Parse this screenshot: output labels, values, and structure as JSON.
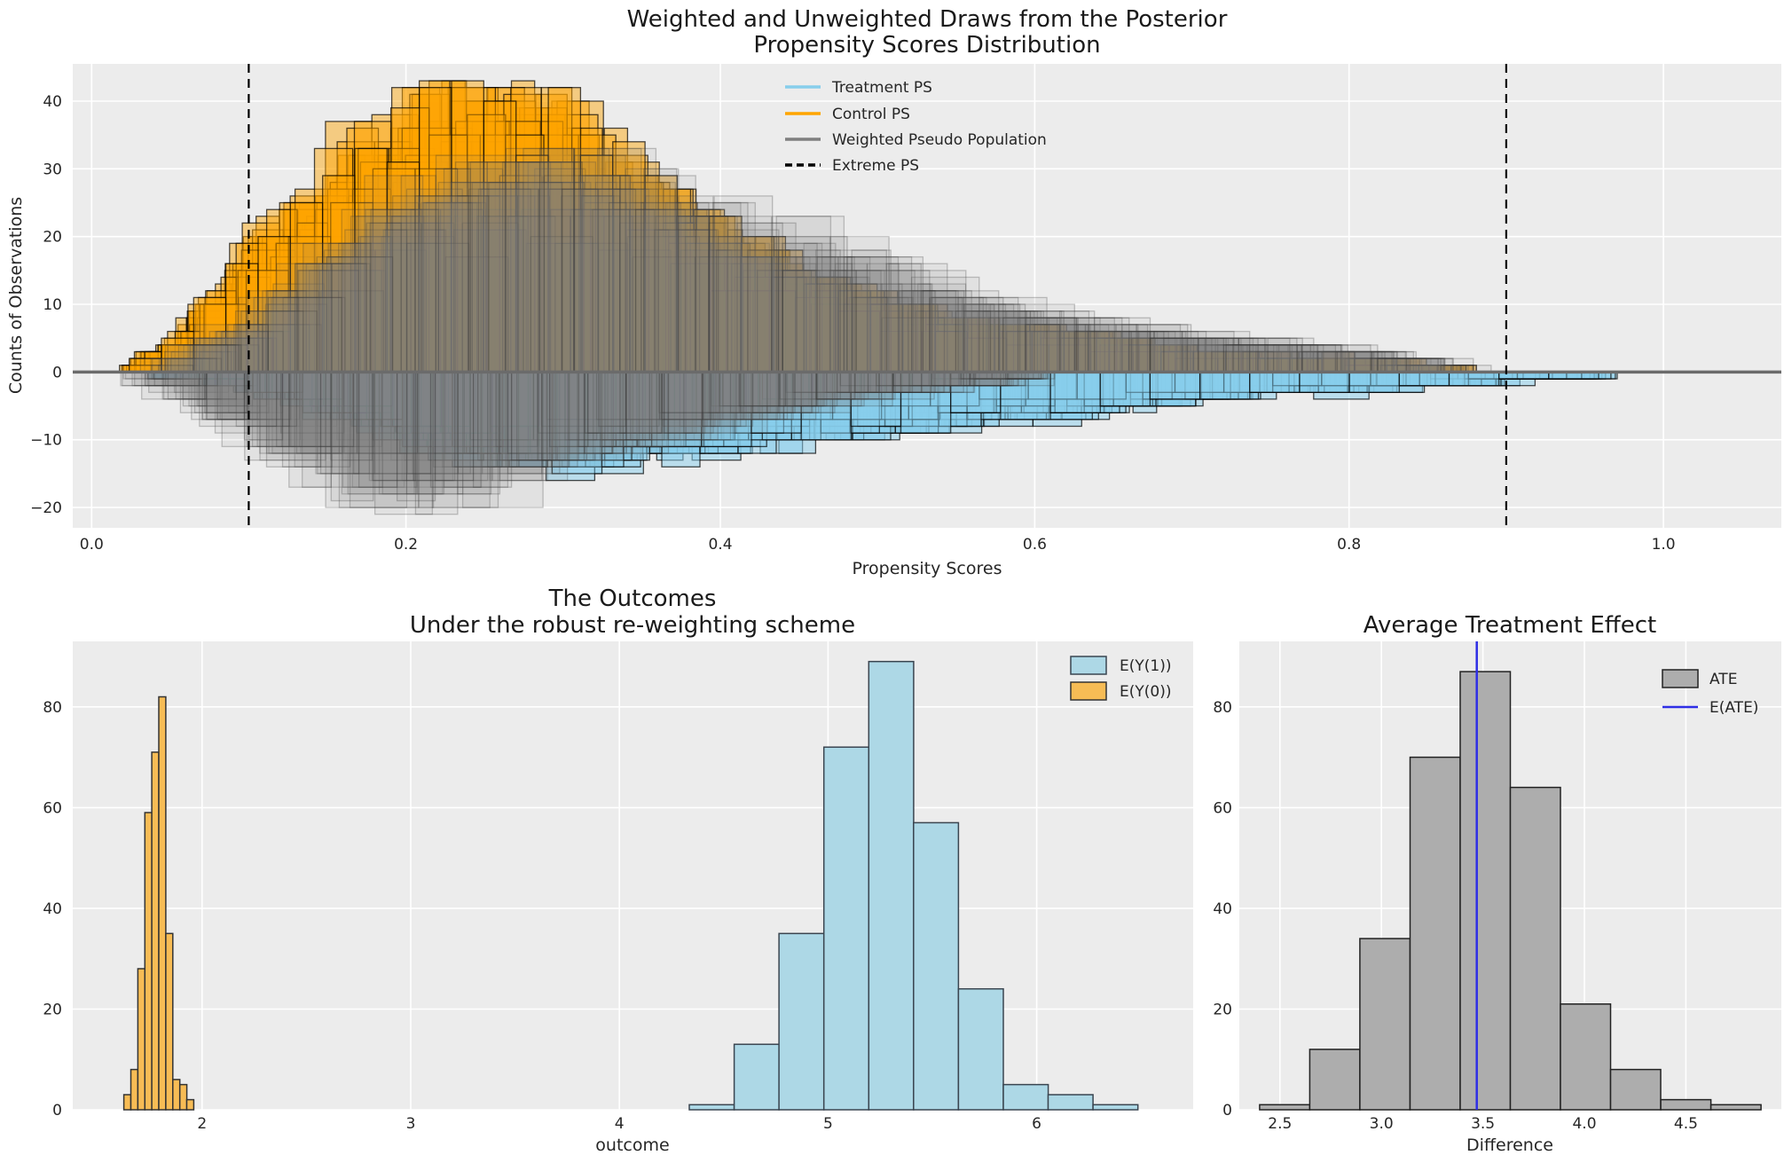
{
  "figure": {
    "background": "#ffffff",
    "axes_background": "#ececec",
    "grid_color": "#ffffff",
    "text_color": "#262626"
  },
  "chart_data": [
    {
      "id": "posterior-propensity-scores",
      "type": "bar",
      "subtype": "mirrored-overlaid-histogram-draws",
      "title_line1": "Weighted and Unweighted Draws from the Posterior",
      "title_line2": "Propensity Scores Distribution",
      "xlabel": "Propensity Scores",
      "ylabel": "Counts of Observations",
      "xlim": [
        -0.012,
        1.075
      ],
      "ylim": [
        -23,
        45.5
      ],
      "x_ticks": [
        {
          "v": 0.0,
          "label": "0.0"
        },
        {
          "v": 0.2,
          "label": "0.2"
        },
        {
          "v": 0.4,
          "label": "0.4"
        },
        {
          "v": 0.6,
          "label": "0.6"
        },
        {
          "v": 0.8,
          "label": "0.8"
        },
        {
          "v": 1.0,
          "label": "1.0"
        }
      ],
      "y_ticks": [
        {
          "v": -20,
          "label": "−20"
        },
        {
          "v": -10,
          "label": "−10"
        },
        {
          "v": 0,
          "label": "0"
        },
        {
          "v": 10,
          "label": "10"
        },
        {
          "v": 20,
          "label": "20"
        },
        {
          "v": 30,
          "label": "30"
        },
        {
          "v": 40,
          "label": "40"
        }
      ],
      "zero_line": 0,
      "extreme_ps": [
        0.1,
        0.9
      ],
      "legend": [
        {
          "label": "Treatment PS",
          "color": "#87CEEB",
          "style": "line"
        },
        {
          "label": "Control PS",
          "color": "#FFA500",
          "style": "line"
        },
        {
          "label": "Weighted Pseudo Population",
          "color": "#7f7f7f",
          "style": "line"
        },
        {
          "label": "Extreme PS",
          "color": "#000000",
          "style": "dashed"
        }
      ],
      "series": [
        {
          "name": "Control PS draws",
          "side": 1,
          "color": "#FFA500",
          "fill_opacity": 0.45,
          "stroke": "#000000",
          "stroke_opacity": 0.7,
          "n_draws": 26,
          "seed": 101,
          "cap": 43,
          "bin_w_min": 0.014,
          "bin_w_max": 0.036,
          "x": [
            0.03,
            0.05,
            0.07,
            0.09,
            0.11,
            0.13,
            0.15,
            0.17,
            0.19,
            0.21,
            0.24,
            0.27,
            0.3,
            0.33,
            0.36,
            0.39,
            0.42,
            0.46,
            0.5,
            0.54,
            0.58,
            0.62,
            0.66,
            0.7,
            0.75,
            0.8,
            0.85,
            0.88
          ],
          "mean_counts": [
            1,
            3,
            7,
            13,
            17,
            21,
            25,
            29,
            32,
            35,
            36,
            35,
            32,
            28,
            24,
            20,
            16,
            12,
            9,
            7,
            6,
            5,
            4,
            3,
            2,
            2,
            1,
            0
          ]
        },
        {
          "name": "Treatment PS draws",
          "side": -1,
          "color": "#87CEEB",
          "fill_opacity": 0.5,
          "stroke": "#000000",
          "stroke_opacity": 0.7,
          "n_draws": 26,
          "seed": 202,
          "cap": 17,
          "bin_w_min": 0.014,
          "bin_w_max": 0.036,
          "x": [
            0.05,
            0.07,
            0.09,
            0.12,
            0.15,
            0.18,
            0.21,
            0.25,
            0.29,
            0.33,
            0.37,
            0.41,
            0.45,
            0.5,
            0.55,
            0.6,
            0.65,
            0.7,
            0.75,
            0.8,
            0.85,
            0.9,
            0.93,
            0.96
          ],
          "mean_counts": [
            0.5,
            1,
            2,
            3.5,
            5,
            7,
            9,
            11,
            12,
            12,
            11,
            10,
            9,
            8,
            7,
            6,
            5,
            4,
            3,
            2.5,
            2,
            1.5,
            1,
            0.5
          ]
        },
        {
          "name": "Weighted Pseudo Population draws (control side)",
          "side": 1,
          "color": "#7f7f7f",
          "fill_opacity": 0.1,
          "stroke": "#2e2e2e",
          "stroke_opacity": 0.26,
          "n_draws": 22,
          "seed": 303,
          "cap": 33,
          "bin_w_min": 0.02,
          "bin_w_max": 0.055,
          "x": [
            0.05,
            0.08,
            0.11,
            0.14,
            0.17,
            0.2,
            0.24,
            0.28,
            0.32,
            0.36,
            0.4,
            0.44,
            0.48,
            0.52,
            0.56,
            0.6,
            0.65,
            0.7,
            0.75,
            0.8,
            0.85,
            0.88
          ],
          "mean_counts": [
            1,
            4,
            8,
            13,
            18,
            22,
            26,
            27,
            26,
            24,
            21,
            18,
            15,
            12,
            10,
            8,
            6,
            5,
            4,
            3,
            1.5,
            0
          ]
        },
        {
          "name": "Weighted Pseudo Population draws (treatment side)",
          "side": -1,
          "color": "#7f7f7f",
          "fill_opacity": 0.1,
          "stroke": "#2e2e2e",
          "stroke_opacity": 0.26,
          "n_draws": 22,
          "seed": 404,
          "cap": 22,
          "bin_w_min": 0.02,
          "bin_w_max": 0.055,
          "x": [
            0.04,
            0.06,
            0.08,
            0.1,
            0.13,
            0.16,
            0.19,
            0.22,
            0.25,
            0.28,
            0.32,
            0.36,
            0.4,
            0.45,
            0.5,
            0.55,
            0.6
          ],
          "mean_counts": [
            1,
            3,
            5,
            8,
            11,
            14,
            16,
            16,
            15,
            13,
            11,
            9,
            7,
            5,
            3,
            2,
            1
          ]
        }
      ]
    },
    {
      "id": "outcomes",
      "type": "bar",
      "title_line1": "The Outcomes",
      "title_line2": "Under the robust re-weighting scheme",
      "xlabel": "outcome",
      "ylabel": "",
      "xlim": [
        1.38,
        6.75
      ],
      "ylim": [
        0,
        93
      ],
      "x_ticks": [
        {
          "v": 2,
          "label": "2"
        },
        {
          "v": 3,
          "label": "3"
        },
        {
          "v": 4,
          "label": "4"
        },
        {
          "v": 5,
          "label": "5"
        },
        {
          "v": 6,
          "label": "6"
        }
      ],
      "y_ticks": [
        {
          "v": 0,
          "label": "0"
        },
        {
          "v": 20,
          "label": "20"
        },
        {
          "v": 40,
          "label": "40"
        },
        {
          "v": 60,
          "label": "60"
        },
        {
          "v": 80,
          "label": "80"
        }
      ],
      "legend": [
        {
          "label": "E(Y(1))",
          "color": "#ADD8E6"
        },
        {
          "label": "E(Y(0))",
          "color": "#F7BC55"
        }
      ],
      "series": [
        {
          "name": "E(Y(0))",
          "color": "#F7BC55",
          "edge": "#333333",
          "bin_start": 1.625,
          "bin_width": 0.0335,
          "counts": [
            3,
            8,
            28,
            59,
            71,
            82,
            35,
            6,
            5,
            2
          ]
        },
        {
          "name": "E(Y(1))",
          "color": "#ADD8E6",
          "edge": "#3a4550",
          "bin_start": 4.335,
          "bin_width": 0.215,
          "counts": [
            1,
            13,
            35,
            72,
            89,
            57,
            24,
            5,
            3,
            1
          ]
        }
      ]
    },
    {
      "id": "average-treatment-effect",
      "type": "bar",
      "title": "Average Treatment Effect",
      "xlabel": "Difference",
      "ylabel": "",
      "xlim": [
        2.3,
        4.97
      ],
      "ylim": [
        0,
        93
      ],
      "x_ticks": [
        {
          "v": 2.5,
          "label": "2.5"
        },
        {
          "v": 3.0,
          "label": "3.0"
        },
        {
          "v": 3.5,
          "label": "3.5"
        },
        {
          "v": 4.0,
          "label": "4.0"
        },
        {
          "v": 4.5,
          "label": "4.5"
        }
      ],
      "y_ticks": [
        {
          "v": 0,
          "label": "0"
        },
        {
          "v": 20,
          "label": "20"
        },
        {
          "v": 40,
          "label": "40"
        },
        {
          "v": 60,
          "label": "60"
        },
        {
          "v": 80,
          "label": "80"
        }
      ],
      "legend": [
        {
          "label": "ATE",
          "color": "#ADADAD"
        },
        {
          "label": "E(ATE)",
          "color": "#2e2ee6",
          "style": "line"
        }
      ],
      "series": [
        {
          "name": "ATE",
          "color": "#ADADAD",
          "edge": "#222222",
          "bin_start": 2.4,
          "bin_width": 0.247,
          "counts": [
            1,
            12,
            34,
            70,
            87,
            64,
            21,
            8,
            2,
            1
          ]
        }
      ],
      "e_ate": 3.47
    }
  ]
}
